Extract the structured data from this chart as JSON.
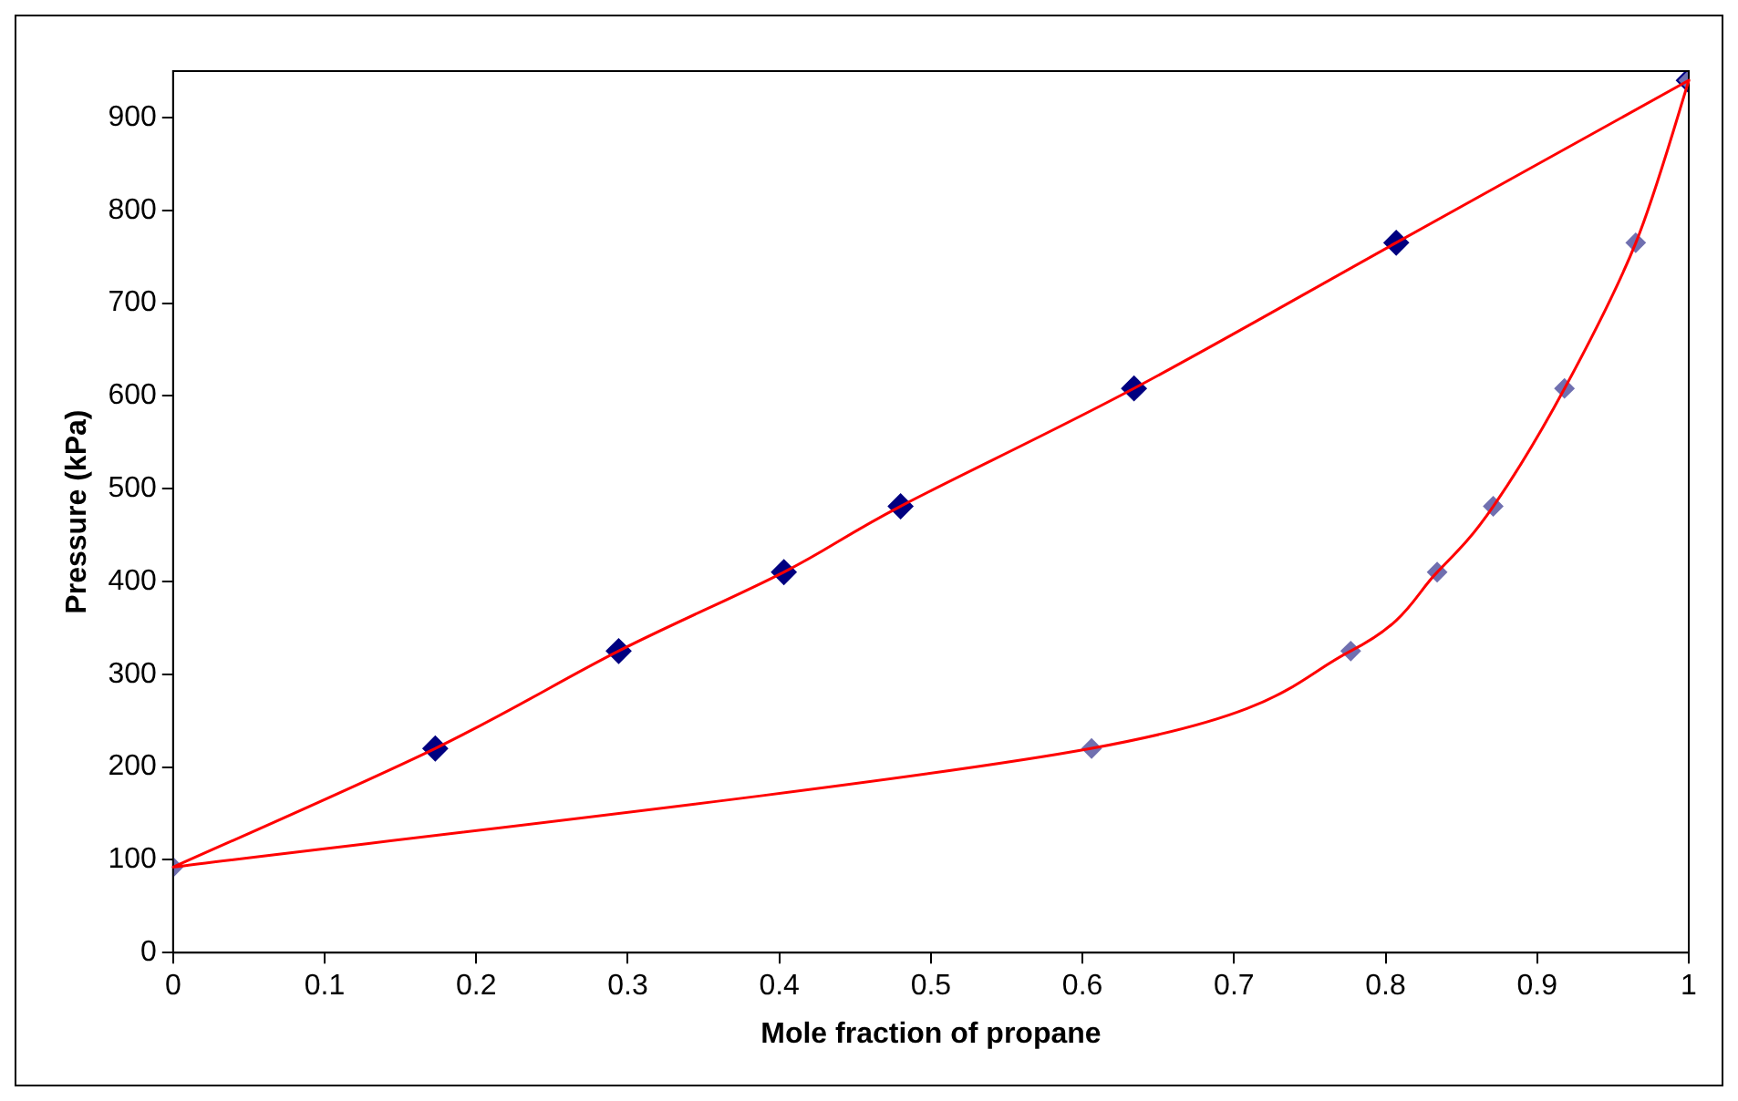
{
  "chart_data": {
    "type": "scatter",
    "xlabel": "Mole fraction of propane",
    "ylabel": "Pressure (kPa)",
    "xlim": [
      0,
      1
    ],
    "xticks": [
      0,
      0.1,
      0.2,
      0.3,
      0.4,
      0.5,
      0.6,
      0.7,
      0.8,
      0.9,
      1
    ],
    "ylim": [
      0,
      950
    ],
    "yticks": [
      0,
      100,
      200,
      300,
      400,
      500,
      600,
      700,
      800,
      900
    ],
    "grid": false,
    "legend": false,
    "series": [
      {
        "type": "scatter",
        "color": "#000080",
        "marker": "diamond",
        "x": [
          0.173,
          0.294,
          0.403,
          0.48,
          0.634,
          0.807,
          1
        ],
        "values": [
          220,
          325,
          410,
          481,
          608,
          765,
          940
        ]
      },
      {
        "type": "scatter",
        "color": "#7070b0",
        "marker": "diamond",
        "x": [
          0,
          0.606,
          0.777,
          0.834,
          0.871,
          0.918,
          0.965,
          1
        ],
        "values": [
          92,
          220,
          325,
          410,
          481,
          608,
          765,
          940
        ]
      }
    ]
  }
}
